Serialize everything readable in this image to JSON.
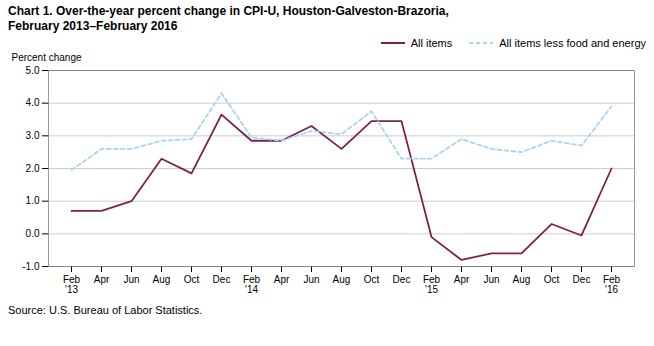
{
  "chart_data": {
    "type": "line",
    "title": "Chart 1. Over-the-year percent change in CPI-U, Houston-Galveston-Brazoria,",
    "subtitle": "February 2013–February 2016",
    "y_label": "Percent change",
    "caption": "Source: U.S. Bureau of Labor Statistics.",
    "categories": [
      "Feb\n'13",
      "Apr",
      "Jun",
      "Aug",
      "Oct",
      "Dec",
      "Feb\n'14",
      "Apr",
      "Jun",
      "Aug",
      "Oct",
      "Dec",
      "Feb\n'15",
      "Apr",
      "Jun",
      "Aug",
      "Oct",
      "Dec",
      "Feb\n'16"
    ],
    "series": [
      {
        "name": "All items",
        "color": "#7b2151",
        "line_style": "solid",
        "values": [
          0.7,
          0.7,
          1.0,
          2.3,
          1.85,
          3.65,
          2.85,
          2.85,
          3.3,
          2.6,
          3.45,
          3.45,
          -0.1,
          -0.8,
          -0.6,
          -0.6,
          0.3,
          -0.05,
          2.0
        ]
      },
      {
        "name": "All items less food and energy",
        "color": "#a8d4f5",
        "line_style": "dashed",
        "values": [
          1.95,
          2.6,
          2.6,
          2.85,
          2.9,
          4.3,
          2.95,
          2.85,
          3.15,
          3.05,
          3.75,
          2.3,
          2.3,
          2.9,
          2.6,
          2.5,
          2.85,
          2.7,
          3.9
        ]
      }
    ],
    "ylim": [
      -1.0,
      5.0
    ],
    "yticks": [
      {
        "value": -1.0,
        "label": "-1.0"
      },
      {
        "value": 0.0,
        "label": "0.0"
      },
      {
        "value": 1.0,
        "label": "1.0"
      },
      {
        "value": 2.0,
        "label": "2.0"
      },
      {
        "value": 3.0,
        "label": "3.0"
      },
      {
        "value": 4.0,
        "label": "4.0"
      },
      {
        "value": 5.0,
        "label": "5.0"
      }
    ],
    "grid": true,
    "legend": "upper right"
  }
}
